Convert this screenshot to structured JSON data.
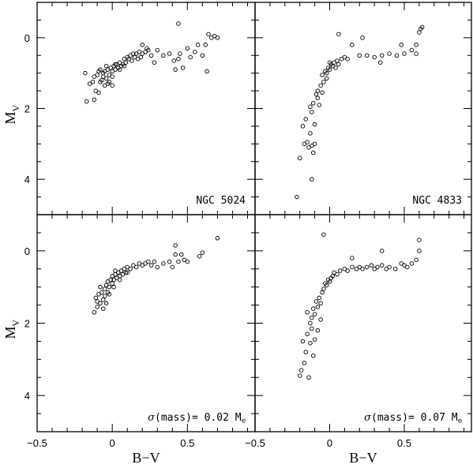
{
  "chart_data": [
    {
      "type": "scatter",
      "label": "NGC 5024",
      "label_parts": [
        "NGC 5024"
      ],
      "ylabel": "M",
      "ylabel_sub": "V",
      "xlabel": "",
      "xlim": [
        -0.5,
        0.95
      ],
      "ylim": [
        5.0,
        -1.0
      ],
      "y_ticks": [
        "0",
        "2",
        "4"
      ],
      "x_ticks": [],
      "points": [
        [
          -0.18,
          1.0
        ],
        [
          -0.17,
          1.8
        ],
        [
          -0.15,
          1.3
        ],
        [
          -0.13,
          1.25
        ],
        [
          -0.12,
          1.75
        ],
        [
          -0.11,
          1.5
        ],
        [
          -0.1,
          1.05
        ],
        [
          -0.09,
          1.55
        ],
        [
          -0.08,
          1.25
        ],
        [
          -0.07,
          1.2
        ],
        [
          -0.06,
          1.1
        ],
        [
          -0.05,
          1.35
        ],
        [
          -0.05,
          0.95
        ],
        [
          -0.04,
          1.15
        ],
        [
          -0.03,
          0.9
        ],
        [
          -0.02,
          1.05
        ],
        [
          -0.02,
          1.25
        ],
        [
          -0.01,
          0.85
        ],
        [
          0.0,
          0.95
        ],
        [
          0.0,
          1.1
        ],
        [
          0.01,
          0.8
        ],
        [
          0.02,
          0.9
        ],
        [
          0.03,
          0.75
        ],
        [
          0.04,
          0.85
        ],
        [
          0.05,
          0.7
        ],
        [
          0.06,
          0.8
        ],
        [
          0.07,
          0.75
        ],
        [
          0.08,
          0.6
        ],
        [
          0.09,
          0.7
        ],
        [
          0.1,
          0.55
        ],
        [
          0.11,
          0.6
        ],
        [
          0.12,
          0.5
        ],
        [
          0.13,
          0.65
        ],
        [
          0.14,
          0.45
        ],
        [
          0.15,
          0.55
        ],
        [
          0.16,
          0.45
        ],
        [
          0.17,
          0.6
        ],
        [
          0.18,
          0.4
        ],
        [
          0.19,
          0.55
        ],
        [
          0.2,
          0.45
        ],
        [
          0.22,
          0.4
        ],
        [
          0.24,
          0.35
        ],
        [
          0.2,
          0.2
        ],
        [
          0.23,
          0.3
        ],
        [
          0.26,
          0.5
        ],
        [
          0.28,
          0.7
        ],
        [
          0.3,
          0.35
        ],
        [
          0.34,
          0.5
        ],
        [
          0.38,
          0.45
        ],
        [
          0.41,
          0.65
        ],
        [
          0.42,
          0.9
        ],
        [
          0.44,
          0.6
        ],
        [
          0.45,
          0.45
        ],
        [
          0.47,
          0.85
        ],
        [
          0.5,
          0.3
        ],
        [
          0.52,
          0.55
        ],
        [
          0.55,
          0.4
        ],
        [
          0.57,
          0.2
        ],
        [
          0.6,
          0.5
        ],
        [
          0.62,
          0.2
        ],
        [
          0.64,
          -0.1
        ],
        [
          0.66,
          0.0
        ],
        [
          0.68,
          -0.05
        ],
        [
          0.7,
          0.0
        ],
        [
          0.63,
          0.95
        ],
        [
          0.44,
          -0.4
        ],
        [
          -0.08,
          0.9
        ],
        [
          -0.06,
          1.0
        ],
        [
          -0.03,
          1.3
        ],
        [
          0.02,
          0.75
        ],
        [
          0.05,
          0.9
        ],
        [
          0.08,
          0.8
        ],
        [
          -0.12,
          1.1
        ],
        [
          -0.09,
          0.95
        ],
        [
          0.0,
          1.35
        ],
        [
          -0.04,
          0.8
        ]
      ]
    },
    {
      "type": "scatter",
      "label": "NGC 4833",
      "label_parts": [
        "NGC 4833"
      ],
      "ylabel": "",
      "xlabel": "",
      "xlim": [
        -0.5,
        0.95
      ],
      "ylim": [
        5.0,
        -1.0
      ],
      "y_ticks": [],
      "x_ticks": [],
      "points": [
        [
          -0.22,
          4.5
        ],
        [
          -0.2,
          3.4
        ],
        [
          -0.18,
          2.5
        ],
        [
          -0.17,
          3.0
        ],
        [
          -0.16,
          2.3
        ],
        [
          -0.15,
          2.95
        ],
        [
          -0.14,
          3.1
        ],
        [
          -0.13,
          2.7
        ],
        [
          -0.12,
          3.05
        ],
        [
          -0.11,
          3.25
        ],
        [
          -0.1,
          3.0
        ],
        [
          -0.12,
          4.0
        ],
        [
          -0.13,
          1.95
        ],
        [
          -0.12,
          2.1
        ],
        [
          -0.11,
          1.85
        ],
        [
          -0.1,
          2.45
        ],
        [
          -0.09,
          1.6
        ],
        [
          -0.08,
          1.5
        ],
        [
          -0.07,
          1.9
        ],
        [
          -0.06,
          1.35
        ],
        [
          -0.05,
          1.55
        ],
        [
          -0.05,
          1.05
        ],
        [
          -0.04,
          1.25
        ],
        [
          -0.03,
          0.95
        ],
        [
          -0.02,
          1.15
        ],
        [
          -0.01,
          0.85
        ],
        [
          0.0,
          0.9
        ],
        [
          0.01,
          0.75
        ],
        [
          0.02,
          0.8
        ],
        [
          0.03,
          0.7
        ],
        [
          0.04,
          0.85
        ],
        [
          0.05,
          0.65
        ],
        [
          0.06,
          0.75
        ],
        [
          0.08,
          0.6
        ],
        [
          0.1,
          0.55
        ],
        [
          0.12,
          0.6
        ],
        [
          0.06,
          -0.1
        ],
        [
          0.15,
          0.2
        ],
        [
          0.2,
          0.5
        ],
        [
          0.25,
          0.5
        ],
        [
          0.3,
          0.55
        ],
        [
          0.35,
          0.5
        ],
        [
          0.4,
          0.45
        ],
        [
          0.45,
          0.5
        ],
        [
          0.5,
          0.45
        ],
        [
          0.55,
          0.35
        ],
        [
          0.58,
          0.2
        ],
        [
          0.6,
          -0.15
        ],
        [
          0.61,
          -0.25
        ],
        [
          0.62,
          -0.3
        ],
        [
          0.22,
          0.0
        ],
        [
          0.48,
          0.2
        ],
        [
          0.58,
          0.45
        ],
        [
          0.34,
          0.7
        ],
        [
          -0.02,
          1.0
        ],
        [
          -0.08,
          1.7
        ],
        [
          0.0,
          0.7
        ]
      ]
    },
    {
      "type": "scatter",
      "label": "σ(mass)= 0.02 M⊙",
      "label_parts": [
        "σ",
        "(mass)=  0.02  M",
        "⊙"
      ],
      "ylabel": "M",
      "ylabel_sub": "V",
      "xlabel": "B−V",
      "xlim": [
        -0.5,
        0.95
      ],
      "ylim": [
        5.0,
        -1.0
      ],
      "y_ticks": [
        "0",
        "2",
        "4"
      ],
      "x_ticks": [
        "−0.5",
        "0",
        "0.5"
      ],
      "points": [
        [
          -0.12,
          1.7
        ],
        [
          -0.11,
          1.3
        ],
        [
          -0.1,
          1.55
        ],
        [
          -0.09,
          1.2
        ],
        [
          -0.08,
          1.45
        ],
        [
          -0.07,
          1.15
        ],
        [
          -0.06,
          1.35
        ],
        [
          -0.05,
          1.05
        ],
        [
          -0.05,
          1.25
        ],
        [
          -0.04,
          0.95
        ],
        [
          -0.03,
          1.15
        ],
        [
          -0.03,
          0.85
        ],
        [
          -0.02,
          1.0
        ],
        [
          -0.01,
          0.8
        ],
        [
          0.0,
          0.9
        ],
        [
          0.0,
          0.7
        ],
        [
          0.01,
          0.8
        ],
        [
          0.02,
          0.65
        ],
        [
          0.03,
          0.75
        ],
        [
          0.04,
          0.6
        ],
        [
          0.05,
          0.7
        ],
        [
          0.06,
          0.55
        ],
        [
          0.07,
          0.65
        ],
        [
          0.08,
          0.5
        ],
        [
          0.09,
          0.6
        ],
        [
          0.1,
          0.45
        ],
        [
          0.12,
          0.5
        ],
        [
          0.14,
          0.4
        ],
        [
          0.16,
          0.45
        ],
        [
          0.18,
          0.35
        ],
        [
          0.2,
          0.4
        ],
        [
          0.22,
          0.35
        ],
        [
          0.24,
          0.3
        ],
        [
          0.26,
          0.4
        ],
        [
          0.28,
          0.3
        ],
        [
          0.3,
          0.45
        ],
        [
          0.34,
          0.35
        ],
        [
          0.38,
          0.3
        ],
        [
          0.4,
          0.45
        ],
        [
          0.42,
          0.1
        ],
        [
          0.44,
          0.3
        ],
        [
          0.46,
          0.1
        ],
        [
          0.48,
          0.25
        ],
        [
          0.5,
          0.3
        ],
        [
          0.58,
          0.15
        ],
        [
          0.6,
          0.05
        ],
        [
          0.7,
          -0.35
        ],
        [
          0.42,
          -0.15
        ],
        [
          -0.06,
          1.6
        ],
        [
          -0.08,
          1.0
        ],
        [
          -0.02,
          1.2
        ],
        [
          0.01,
          1.0
        ],
        [
          -0.1,
          1.4
        ],
        [
          0.05,
          0.8
        ],
        [
          -0.04,
          1.45
        ],
        [
          0.1,
          0.6
        ],
        [
          0.02,
          0.55
        ]
      ]
    },
    {
      "type": "scatter",
      "label": "σ(mass)= 0.07 M⊙",
      "label_parts": [
        "σ",
        "(mass)=  0.07  M",
        "⊙"
      ],
      "ylabel": "",
      "xlabel": "B−V",
      "xlim": [
        -0.5,
        0.95
      ],
      "ylim": [
        5.0,
        -1.0
      ],
      "y_ticks": [],
      "x_ticks": [
        "−0.5",
        "0",
        "0.5"
      ],
      "points": [
        [
          -0.2,
          3.45
        ],
        [
          -0.19,
          3.3
        ],
        [
          -0.18,
          2.5
        ],
        [
          -0.17,
          3.1
        ],
        [
          -0.16,
          2.8
        ],
        [
          -0.15,
          2.3
        ],
        [
          -0.14,
          3.5
        ],
        [
          -0.13,
          2.55
        ],
        [
          -0.12,
          2.15
        ],
        [
          -0.11,
          2.9
        ],
        [
          -0.1,
          2.45
        ],
        [
          -0.12,
          1.85
        ],
        [
          -0.11,
          1.6
        ],
        [
          -0.1,
          1.75
        ],
        [
          -0.09,
          1.4
        ],
        [
          -0.08,
          1.55
        ],
        [
          -0.07,
          1.3
        ],
        [
          -0.06,
          1.45
        ],
        [
          -0.05,
          1.15
        ],
        [
          -0.04,
          1.05
        ],
        [
          -0.03,
          0.9
        ],
        [
          -0.02,
          0.95
        ],
        [
          -0.01,
          0.8
        ],
        [
          0.0,
          0.85
        ],
        [
          0.01,
          0.75
        ],
        [
          0.02,
          0.7
        ],
        [
          0.03,
          0.6
        ],
        [
          0.05,
          0.65
        ],
        [
          0.07,
          0.55
        ],
        [
          0.1,
          0.5
        ],
        [
          0.12,
          0.55
        ],
        [
          0.15,
          0.45
        ],
        [
          0.18,
          0.5
        ],
        [
          0.2,
          0.45
        ],
        [
          0.22,
          0.5
        ],
        [
          0.25,
          0.45
        ],
        [
          0.28,
          0.4
        ],
        [
          0.3,
          0.5
        ],
        [
          0.32,
          0.45
        ],
        [
          0.35,
          0.4
        ],
        [
          0.38,
          0.5
        ],
        [
          0.4,
          0.45
        ],
        [
          0.44,
          0.5
        ],
        [
          0.48,
          0.35
        ],
        [
          0.5,
          0.4
        ],
        [
          0.52,
          0.45
        ],
        [
          0.55,
          0.35
        ],
        [
          0.58,
          0.25
        ],
        [
          0.6,
          -0.3
        ],
        [
          0.6,
          0.0
        ],
        [
          0.35,
          0.0
        ],
        [
          0.15,
          0.2
        ],
        [
          -0.04,
          -0.45
        ],
        [
          -0.13,
          2.0
        ],
        [
          -0.08,
          2.2
        ],
        [
          -0.15,
          1.7
        ],
        [
          -0.06,
          1.9
        ]
      ]
    }
  ]
}
